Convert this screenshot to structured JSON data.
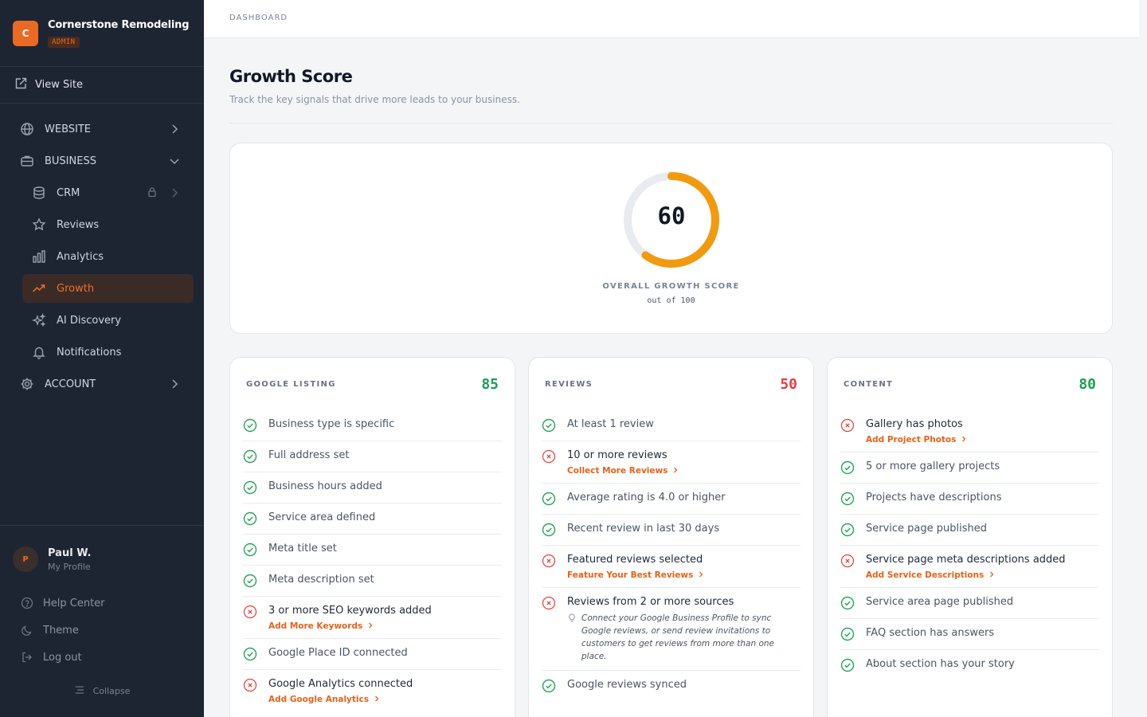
{
  "brand": {
    "logo_letter": "C",
    "name": "Cornerstone Remodeling",
    "badge": "ADMIN"
  },
  "view_site": "View Site",
  "nav": {
    "website": "WEBSITE",
    "business": "BUSINESS",
    "crm": "CRM",
    "reviews": "Reviews",
    "analytics": "Analytics",
    "growth": "Growth",
    "ai_discovery": "AI Discovery",
    "notifications": "Notifications",
    "account": "ACCOUNT"
  },
  "profile": {
    "initial": "P",
    "name": "Paul W.",
    "sub": "My Profile"
  },
  "bottom": {
    "help": "Help Center",
    "theme": "Theme",
    "logout": "Log out",
    "collapse": "Collapse"
  },
  "breadcrumb": "DASHBOARD",
  "page": {
    "title": "Growth Score",
    "subtitle": "Track the key signals that drive more leads to your business."
  },
  "overall": {
    "score": "60",
    "fraction": 0.6,
    "label": "OVERALL GROWTH SCORE",
    "sub": "out of 100"
  },
  "colors": {
    "accent": "#ea6a23",
    "ring": "#f29a0e",
    "pass": "#22a55b",
    "fail": "#e53e3e"
  },
  "cards": [
    {
      "title": "GOOGLE LISTING",
      "score": "85",
      "score_color": "#1f9d55",
      "items": [
        {
          "label": "Business type is specific",
          "status": "pass"
        },
        {
          "label": "Full address set",
          "status": "pass"
        },
        {
          "label": "Business hours added",
          "status": "pass"
        },
        {
          "label": "Service area defined",
          "status": "pass"
        },
        {
          "label": "Meta title set",
          "status": "pass"
        },
        {
          "label": "Meta description set",
          "status": "pass"
        },
        {
          "label": "3 or more SEO keywords added",
          "status": "fail",
          "action": "Add More Keywords"
        },
        {
          "label": "Google Place ID connected",
          "status": "pass"
        },
        {
          "label": "Google Analytics connected",
          "status": "fail",
          "action": "Add Google Analytics"
        }
      ]
    },
    {
      "title": "REVIEWS",
      "score": "50",
      "score_color": "#e53e3e",
      "items": [
        {
          "label": "At least 1 review",
          "status": "pass"
        },
        {
          "label": "10 or more reviews",
          "status": "fail",
          "action": "Collect More Reviews"
        },
        {
          "label": "Average rating is 4.0 or higher",
          "status": "pass"
        },
        {
          "label": "Recent review in last 30 days",
          "status": "pass"
        },
        {
          "label": "Featured reviews selected",
          "status": "fail",
          "action": "Feature Your Best Reviews"
        },
        {
          "label": "Reviews from 2 or more sources",
          "status": "fail",
          "hint": "Connect your Google Business Profile to sync Google reviews, or send review invitations to customers to get reviews from more than one place."
        },
        {
          "label": "Google reviews synced",
          "status": "pass"
        }
      ]
    },
    {
      "title": "CONTENT",
      "score": "80",
      "score_color": "#1f9d55",
      "items": [
        {
          "label": "Gallery has photos",
          "status": "fail",
          "action": "Add Project Photos"
        },
        {
          "label": "5 or more gallery projects",
          "status": "pass"
        },
        {
          "label": "Projects have descriptions",
          "status": "pass"
        },
        {
          "label": "Service page published",
          "status": "pass"
        },
        {
          "label": "Service page meta descriptions added",
          "status": "fail",
          "action": "Add Service Descriptions"
        },
        {
          "label": "Service area page published",
          "status": "pass"
        },
        {
          "label": "FAQ section has answers",
          "status": "pass"
        },
        {
          "label": "About section has your story",
          "status": "pass"
        }
      ]
    }
  ]
}
